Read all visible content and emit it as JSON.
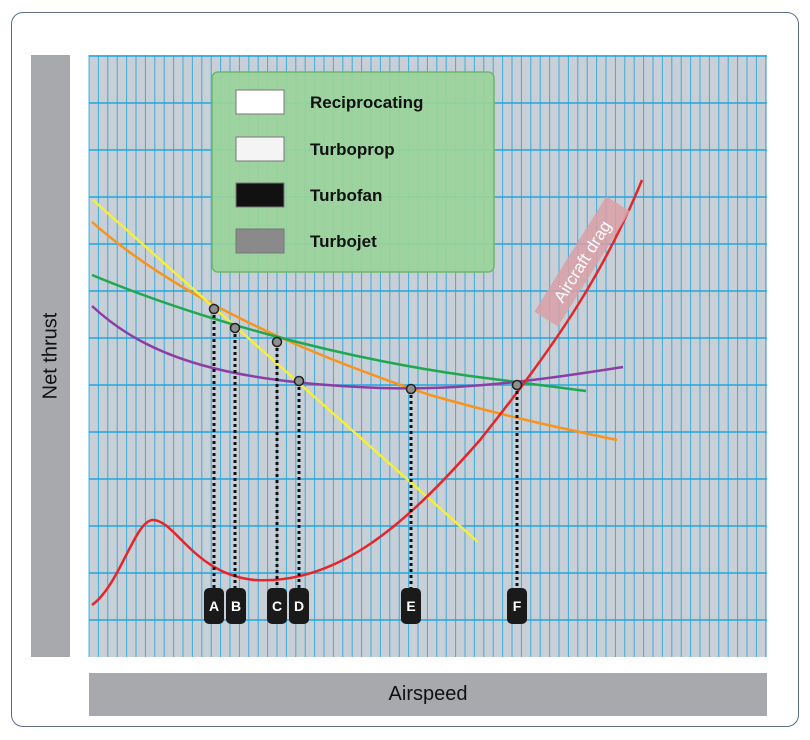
{
  "axes": {
    "y_label": "Net thrust",
    "x_label": "Airspeed"
  },
  "legend": [
    {
      "label": "Reciprocating",
      "swatch": "#ffffff"
    },
    {
      "label": "Turboprop",
      "swatch": "#f4f4f4"
    },
    {
      "label": "Turbofan",
      "swatch": "#111111"
    },
    {
      "label": "Turbojet",
      "swatch": "#8a8a8a"
    }
  ],
  "curves": {
    "drag_label": "Aircraft drag",
    "colors": {
      "drag": "#e5252a",
      "reciprocating": "#f5ee3a",
      "turboprop": "#f7941d",
      "turbofan": "#1fa84f",
      "turbojet": "#8b3fa4"
    }
  },
  "markers": [
    "A",
    "B",
    "C",
    "D",
    "E",
    "F"
  ],
  "colors": {
    "plot_background": "#c9cfd6",
    "grid": "#22a6dd",
    "legend_fill": "#9ad49a",
    "frame": "#5b6f86"
  }
}
